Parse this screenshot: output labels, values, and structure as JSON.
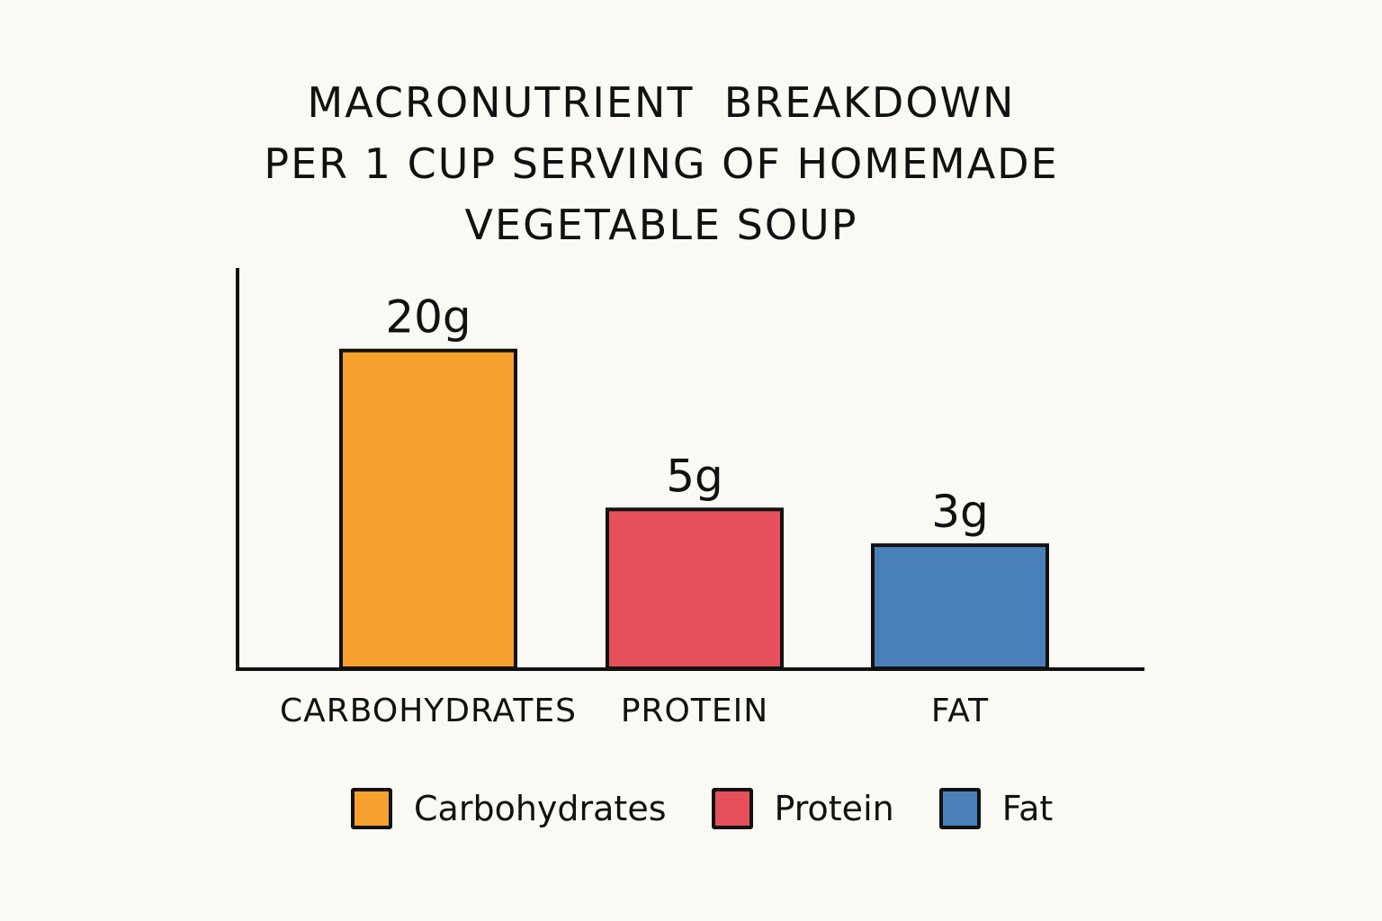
{
  "chart_data": {
    "type": "bar",
    "title_lines": [
      "MACRONUTRIENT  BREAKDOWN",
      "PER 1 CUP SERVING OF HOMEMADE",
      "VEGETABLE SOUP"
    ],
    "categories": [
      "CARBOHYDRATES",
      "PROTEIN",
      "FAT"
    ],
    "values": [
      20,
      5,
      3
    ],
    "unit": "g",
    "data_labels": [
      "20g",
      "5g",
      "3g"
    ],
    "colors": [
      "#F6A12E",
      "#E5505A",
      "#4A80B8"
    ],
    "legend": {
      "placement": "bottom",
      "entries": [
        "Carbohydrates",
        "Protein",
        "Fat"
      ]
    },
    "xlabel": "",
    "ylabel": "",
    "grid": false
  }
}
